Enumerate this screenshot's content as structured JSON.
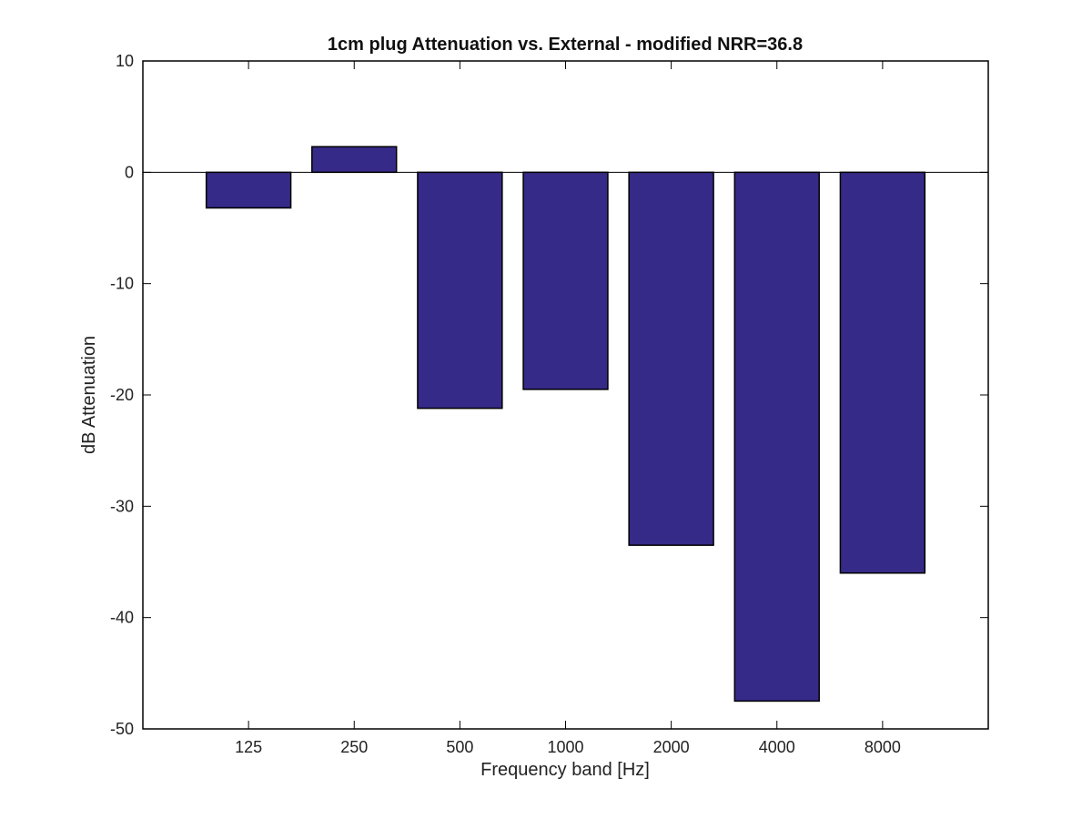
{
  "chart_data": {
    "type": "bar",
    "title": "1cm plug Attenuation vs. External - modified NRR=36.8",
    "xlabel": "Frequency band [Hz]",
    "ylabel": "dB Attenuation",
    "categories": [
      "125",
      "250",
      "500",
      "1000",
      "2000",
      "4000",
      "8000"
    ],
    "values": [
      -3.2,
      2.3,
      -21.2,
      -19.5,
      -33.5,
      -47.5,
      -36.0
    ],
    "ylim": [
      -50,
      10
    ],
    "yticks": [
      "10",
      "0",
      "-10",
      "-20",
      "-30",
      "-40",
      "-50"
    ],
    "grid": false,
    "bar_color": "#352a87",
    "edge_color": "#000000"
  }
}
